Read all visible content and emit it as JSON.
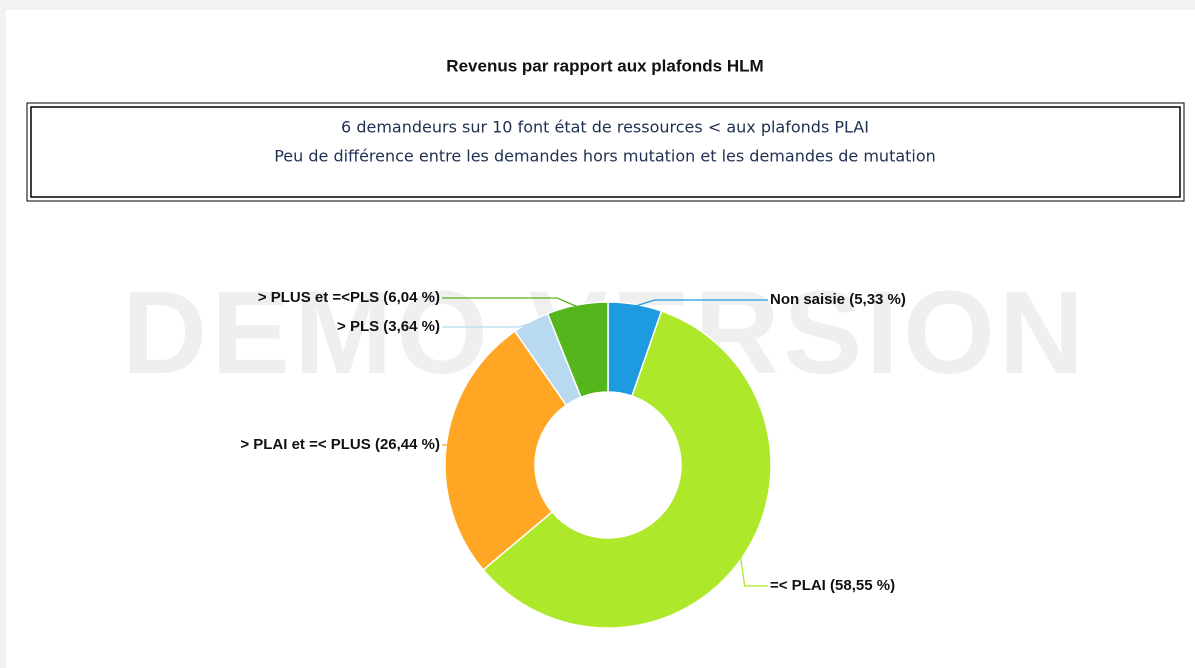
{
  "watermark": "DEMO VERSION",
  "chart_data": {
    "type": "pie",
    "title": "Revenus par rapport aux plafonds HLM",
    "annotations": [
      "6 demandeurs sur 10 font état de ressources < aux plafonds PLAI",
      "Peu de différence entre les demandes hors mutation et les demandes de mutation"
    ],
    "categories": [
      "Non saisie",
      "=< PLAI",
      "> PLAI et =< PLUS",
      "> PLS",
      "> PLUS et =<PLS"
    ],
    "values": [
      5.33,
      58.55,
      26.44,
      3.64,
      6.04
    ],
    "value_labels": [
      "(5,33 %)",
      "(58,55 %)",
      "(26,44 %)",
      "(3,64 %)",
      "(6,04 %)"
    ],
    "colors": [
      "#1e9be0",
      "#aee82a",
      "#ffa624",
      "#b9d9f0",
      "#55b51c"
    ],
    "donut": true
  }
}
